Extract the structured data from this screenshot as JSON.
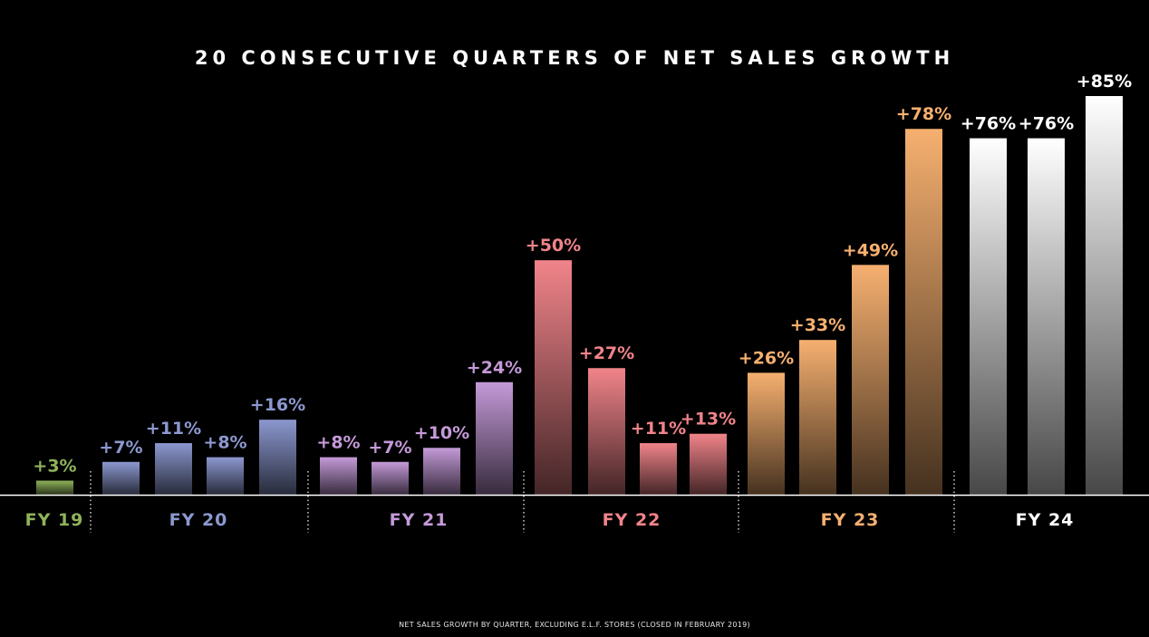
{
  "title": "20 CONSECUTIVE QUARTERS OF NET SALES GROWTH",
  "footnote": "NET SALES GROWTH BY QUARTER, EXCLUDING E.L.F. STORES (CLOSED IN FEBRUARY 2019)",
  "chart_data": {
    "type": "bar",
    "title": "20 CONSECUTIVE QUARTERS OF NET SALES GROWTH",
    "unit": "%",
    "grid": false,
    "ylim": [
      0,
      90
    ],
    "groups": [
      {
        "label": "FY 19",
        "color": "#8fb35a",
        "values": [
          3
        ],
        "labels": [
          "+3%"
        ]
      },
      {
        "label": "FY 20",
        "color": "#8c98cf",
        "values": [
          7,
          11,
          8,
          16
        ],
        "labels": [
          "+7%",
          "+11%",
          "+8%",
          "+16%"
        ]
      },
      {
        "label": "FY 21",
        "color": "#c49ad8",
        "values": [
          8,
          7,
          10,
          24
        ],
        "labels": [
          "+8%",
          "+7%",
          "+10%",
          "+24%"
        ]
      },
      {
        "label": "FY 22",
        "color": "#f0848a",
        "values": [
          50,
          27,
          11,
          13
        ],
        "labels": [
          "+50%",
          "+27%",
          "+11%",
          "+13%"
        ]
      },
      {
        "label": "FY 23",
        "color": "#f6b070",
        "values": [
          26,
          33,
          49,
          78
        ],
        "labels": [
          "+26%",
          "+33%",
          "+49%",
          "+78%"
        ]
      },
      {
        "label": "FY 24",
        "color": "#ffffff",
        "values": [
          76,
          76,
          85
        ],
        "labels": [
          "+76%",
          "+76%",
          "+85%"
        ]
      }
    ]
  }
}
